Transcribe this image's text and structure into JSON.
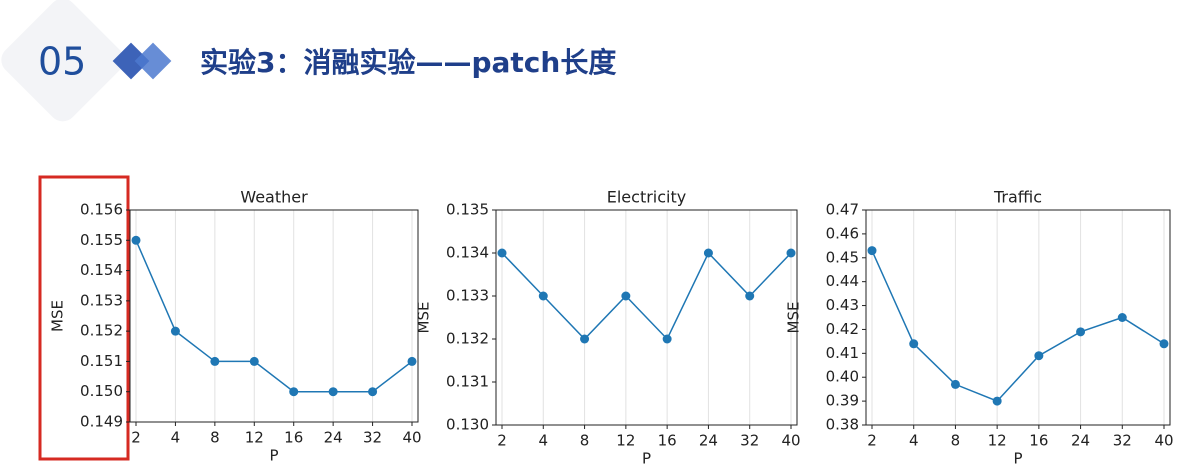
{
  "header": {
    "number": "05",
    "title": "实验3：消融实验——patch长度"
  },
  "chart_data": [
    {
      "type": "line",
      "title": "Weather",
      "x_label": "P",
      "y_label": "MSE",
      "categories": [
        "2",
        "4",
        "8",
        "12",
        "16",
        "24",
        "32",
        "40"
      ],
      "values": [
        0.155,
        0.152,
        0.151,
        0.151,
        0.15,
        0.15,
        0.15,
        0.151
      ],
      "color": "#1f77b4",
      "grid": "x",
      "ylim": [
        0.149,
        0.156
      ],
      "yticks": [
        {
          "value": 0.149,
          "label": "0.149"
        },
        {
          "value": 0.15,
          "label": "0.150"
        },
        0.151,
        0.152,
        0.153,
        0.154,
        0.155,
        0.156
      ]
    },
    {
      "type": "line",
      "title": "Electricity",
      "x_label": "P",
      "y_label": "MSE",
      "categories": [
        "2",
        "4",
        "8",
        "12",
        "16",
        "24",
        "32",
        "40"
      ],
      "values": [
        0.134,
        0.133,
        0.132,
        0.133,
        0.132,
        0.134,
        0.133,
        0.134
      ],
      "color": "#1f77b4",
      "grid": "x",
      "ylim": [
        0.13,
        0.135
      ],
      "yticks": [
        {
          "value": 0.13,
          "label": "0.130"
        },
        0.131,
        0.132,
        0.133,
        0.134,
        0.135
      ]
    },
    {
      "type": "line",
      "title": "Traffic",
      "x_label": "P",
      "y_label": "MSE",
      "categories": [
        "2",
        "4",
        "8",
        "12",
        "16",
        "24",
        "32",
        "40"
      ],
      "values": [
        0.453,
        0.414,
        0.397,
        0.39,
        0.409,
        0.419,
        0.425,
        0.414
      ],
      "color": "#1f77b4",
      "grid": "x",
      "ylim": [
        0.38,
        0.47
      ],
      "yticks": [
        0.38,
        0.39,
        {
          "value": 0.4,
          "label": "0.40"
        },
        0.41,
        0.42,
        0.43,
        0.44,
        0.45,
        0.46,
        0.47
      ]
    }
  ]
}
